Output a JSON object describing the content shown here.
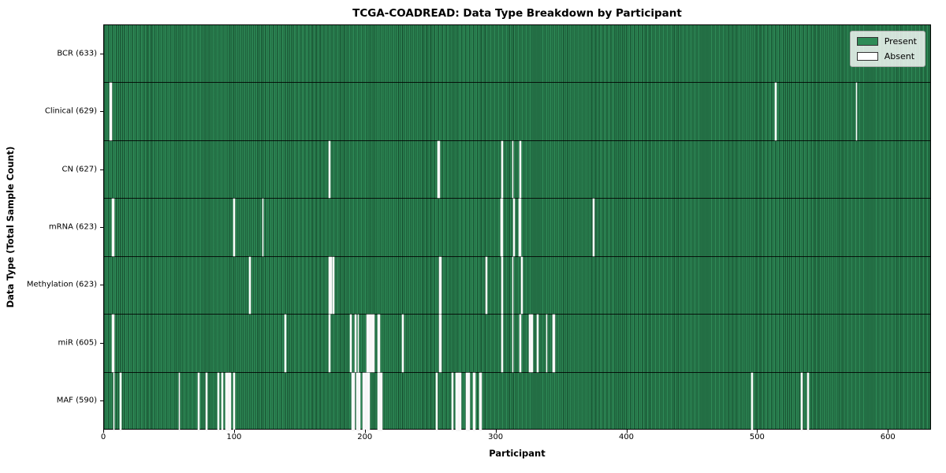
{
  "chart_data": {
    "type": "heatmap",
    "title": "TCGA-COADREAD: Data Type Breakdown by Participant",
    "xlabel": "Participant",
    "ylabel": "Data Type (Total Sample Count)",
    "x_range": [
      0,
      633
    ],
    "x_ticks": [
      0,
      100,
      200,
      300,
      400,
      500,
      600
    ],
    "n_participants": 633,
    "grid": false,
    "legend_position": "upper right",
    "legend": [
      {
        "label": "Present",
        "color": "#2e8b57"
      },
      {
        "label": "Absent",
        "color": "#ffffff"
      }
    ],
    "colors": {
      "present": "#2e8b57",
      "present_edge": "#0a2d19",
      "absent": "#fbfbfb",
      "row_separator": "#000000"
    },
    "rows": [
      {
        "data_type": "BCR",
        "label": "BCR (633)",
        "present_count": 633,
        "absent_count": 0,
        "absent_participants": []
      },
      {
        "data_type": "Clinical",
        "label": "Clinical (629)",
        "present_count": 629,
        "absent_count": 4,
        "absent_participants": [
          4,
          5,
          513,
          575
        ]
      },
      {
        "data_type": "CN",
        "label": "CN (627)",
        "present_count": 627,
        "absent_count": 6,
        "absent_participants": [
          172,
          255,
          256,
          304,
          312,
          318
        ]
      },
      {
        "data_type": "mRNA",
        "label": "mRNA (623)",
        "present_count": 623,
        "absent_count": 10,
        "absent_participants": [
          6,
          7,
          99,
          121,
          303,
          304,
          313,
          317,
          318,
          374
        ]
      },
      {
        "data_type": "Methylation",
        "label": "Methylation (623)",
        "present_count": 623,
        "absent_count": 10,
        "absent_participants": [
          111,
          172,
          173,
          175,
          256,
          257,
          292,
          304,
          312,
          319
        ]
      },
      {
        "data_type": "miR",
        "label": "miR (605)",
        "present_count": 605,
        "absent_count": 28,
        "absent_participants": [
          6,
          7,
          138,
          172,
          188,
          192,
          194,
          201,
          202,
          203,
          204,
          205,
          206,
          209,
          210,
          228,
          256,
          257,
          304,
          312,
          318,
          325,
          326,
          327,
          331,
          338,
          343,
          344
        ]
      },
      {
        "data_type": "MAF",
        "label": "MAF (590)",
        "present_count": 590,
        "absent_count": 43,
        "absent_participants": [
          7,
          12,
          57,
          72,
          78,
          87,
          90,
          93,
          94,
          95,
          96,
          99,
          189,
          190,
          191,
          193,
          194,
          195,
          198,
          199,
          200,
          201,
          202,
          209,
          210,
          211,
          212,
          254,
          266,
          269,
          270,
          271,
          272,
          277,
          278,
          279,
          282,
          283,
          287,
          288,
          495,
          533,
          538
        ]
      }
    ]
  }
}
